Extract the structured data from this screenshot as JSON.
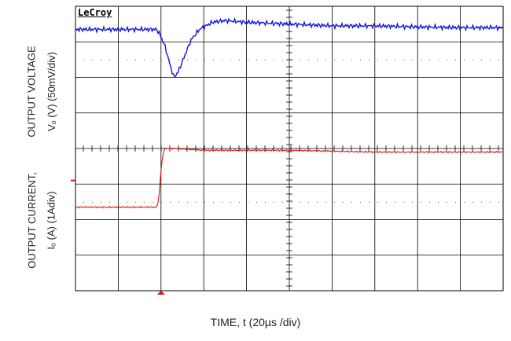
{
  "chart_data": {
    "type": "line",
    "brand": "LeCroy",
    "xlabel": "TIME, t (20µs /div)",
    "ylabel_upper": {
      "line1": "OUTPUT VOLTAGE",
      "line2": "Vₒ (V) (50mV/div)"
    },
    "ylabel_lower": {
      "line1": "OUTPUT CURRENT,",
      "line2": "Iₒ (A)  (1Adiv)"
    },
    "grid": {
      "x_divisions": 10,
      "y_divisions": 8
    },
    "xlim": [
      0,
      10
    ],
    "ylim_divisions": [
      0,
      8
    ],
    "series": [
      {
        "label": "upper",
        "color": "#1515e0",
        "x": [
          0,
          1.9,
          2.0,
          2.1,
          2.2,
          2.3,
          2.4,
          2.55,
          2.7,
          2.9,
          3.2,
          3.5,
          4.0,
          5.0,
          6.0,
          7.0,
          8.0,
          9.0,
          10.0
        ],
        "y": [
          7.35,
          7.35,
          7.15,
          6.85,
          6.4,
          6.0,
          6.15,
          6.6,
          7.05,
          7.35,
          7.55,
          7.6,
          7.55,
          7.5,
          7.45,
          7.45,
          7.42,
          7.4,
          7.4
        ]
      },
      {
        "label": "lower",
        "color": "#e01010",
        "x": [
          0,
          1.9,
          1.95,
          2.0,
          2.05,
          2.1,
          2.3,
          3.0,
          5.0,
          7.0,
          10.0
        ],
        "y": [
          2.35,
          2.35,
          2.6,
          3.4,
          3.9,
          4.0,
          4.0,
          3.95,
          3.95,
          3.9,
          3.9
        ]
      }
    ]
  }
}
